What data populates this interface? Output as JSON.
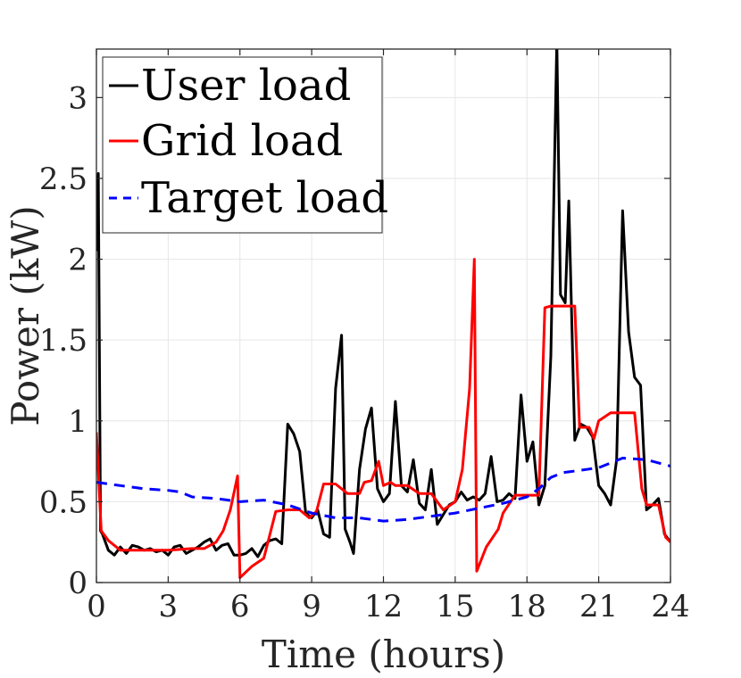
{
  "chart_data": {
    "type": "line",
    "xlabel": "Time (hours)",
    "ylabel": "Power (kW)",
    "xlim": [
      0,
      24
    ],
    "ylim": [
      0,
      3.3
    ],
    "xticks": [
      0,
      3,
      6,
      9,
      12,
      15,
      18,
      21,
      24
    ],
    "yticks": [
      0,
      0.5,
      1,
      1.5,
      2,
      2.5,
      3
    ],
    "ytick_labels": [
      "0",
      "0.5",
      "1",
      "1.5",
      "2",
      "2.5",
      "3"
    ],
    "grid": true,
    "legend_position": "top-left",
    "series": [
      {
        "name": "User load",
        "color": "#000000",
        "style": "solid",
        "x": [
          0,
          0.08,
          0.17,
          0.25,
          0.5,
          0.75,
          1.0,
          1.25,
          1.5,
          1.75,
          2.0,
          2.25,
          2.5,
          2.75,
          3.0,
          3.25,
          3.5,
          3.75,
          4.0,
          4.25,
          4.5,
          4.75,
          5.0,
          5.25,
          5.5,
          5.75,
          6.0,
          6.25,
          6.5,
          6.75,
          7.0,
          7.25,
          7.5,
          7.75,
          8.0,
          8.25,
          8.5,
          8.75,
          9.0,
          9.25,
          9.5,
          9.75,
          10.0,
          10.25,
          10.4,
          10.6,
          10.75,
          11.0,
          11.25,
          11.5,
          11.75,
          12.0,
          12.25,
          12.5,
          12.75,
          13.0,
          13.25,
          13.5,
          13.75,
          14.0,
          14.25,
          14.5,
          14.75,
          15.0,
          15.25,
          15.5,
          15.75,
          16.0,
          16.25,
          16.5,
          16.75,
          17.0,
          17.25,
          17.5,
          17.75,
          18.0,
          18.25,
          18.5,
          18.75,
          19.0,
          19.25,
          19.4,
          19.6,
          19.75,
          20.0,
          20.25,
          20.5,
          20.75,
          21.0,
          21.25,
          21.5,
          21.75,
          22.0,
          22.25,
          22.5,
          22.75,
          23.0,
          23.25,
          23.5,
          23.75,
          24.0
        ],
        "values": [
          2.05,
          2.53,
          0.32,
          0.3,
          0.2,
          0.17,
          0.22,
          0.18,
          0.23,
          0.22,
          0.2,
          0.21,
          0.19,
          0.2,
          0.17,
          0.22,
          0.23,
          0.18,
          0.2,
          0.22,
          0.25,
          0.27,
          0.2,
          0.23,
          0.24,
          0.17,
          0.17,
          0.18,
          0.21,
          0.16,
          0.23,
          0.26,
          0.27,
          0.24,
          0.98,
          0.92,
          0.81,
          0.43,
          0.4,
          0.45,
          0.3,
          0.28,
          1.2,
          1.53,
          0.33,
          0.25,
          0.18,
          0.7,
          0.95,
          1.08,
          0.58,
          0.5,
          0.55,
          1.12,
          0.6,
          0.56,
          0.76,
          0.49,
          0.45,
          0.7,
          0.36,
          0.42,
          0.48,
          0.5,
          0.56,
          0.51,
          0.53,
          0.51,
          0.55,
          0.78,
          0.5,
          0.51,
          0.55,
          0.52,
          1.16,
          0.75,
          0.87,
          0.48,
          0.6,
          1.4,
          3.35,
          1.78,
          1.73,
          2.36,
          0.88,
          0.98,
          0.96,
          0.9,
          0.6,
          0.55,
          0.48,
          0.76,
          2.3,
          1.55,
          1.27,
          1.22,
          0.45,
          0.48,
          0.52,
          0.3,
          0.25
        ]
      },
      {
        "name": "Grid load",
        "color": "#ff0000",
        "style": "solid",
        "x": [
          0,
          0.2,
          0.5,
          1.0,
          2.0,
          3.0,
          4.0,
          4.5,
          5.0,
          5.3,
          5.6,
          5.9,
          6.0,
          6.5,
          7.0,
          7.5,
          8.0,
          8.5,
          8.9,
          9.2,
          9.5,
          10.0,
          10.5,
          11.0,
          11.2,
          11.5,
          11.8,
          12.0,
          12.3,
          12.5,
          13.0,
          13.5,
          14.0,
          14.5,
          15.0,
          15.3,
          15.6,
          15.8,
          15.9,
          16.3,
          16.8,
          17.0,
          17.5,
          18.0,
          18.5,
          18.75,
          19.0,
          20.0,
          20.2,
          20.6,
          20.8,
          21.0,
          21.5,
          22.0,
          22.5,
          22.8,
          23.0,
          23.5,
          23.8,
          24.0
        ],
        "values": [
          0.93,
          0.32,
          0.26,
          0.2,
          0.2,
          0.2,
          0.21,
          0.21,
          0.25,
          0.32,
          0.45,
          0.66,
          0.03,
          0.1,
          0.15,
          0.44,
          0.45,
          0.45,
          0.4,
          0.44,
          0.61,
          0.61,
          0.55,
          0.55,
          0.62,
          0.63,
          0.75,
          0.6,
          0.62,
          0.6,
          0.6,
          0.55,
          0.55,
          0.45,
          0.5,
          0.7,
          1.2,
          2.0,
          0.07,
          0.22,
          0.33,
          0.43,
          0.54,
          0.54,
          0.54,
          1.7,
          1.71,
          1.71,
          0.96,
          0.96,
          0.89,
          1.0,
          1.05,
          1.05,
          1.05,
          0.58,
          0.48,
          0.48,
          0.28,
          0.25
        ]
      },
      {
        "name": "Target load",
        "color": "#0000ff",
        "style": "dashed",
        "x": [
          0,
          1.0,
          2.0,
          3.0,
          3.5,
          4.0,
          5.0,
          6.0,
          7.0,
          8.0,
          9.0,
          10.0,
          11.0,
          12.0,
          13.0,
          14.0,
          15.0,
          16.0,
          17.0,
          18.0,
          18.5,
          19.0,
          19.5,
          20.0,
          21.0,
          21.5,
          22.0,
          23.0,
          24.0
        ],
        "values": [
          0.62,
          0.6,
          0.58,
          0.57,
          0.56,
          0.53,
          0.52,
          0.5,
          0.51,
          0.48,
          0.43,
          0.4,
          0.4,
          0.38,
          0.39,
          0.41,
          0.43,
          0.46,
          0.49,
          0.53,
          0.58,
          0.65,
          0.68,
          0.69,
          0.71,
          0.74,
          0.77,
          0.76,
          0.72
        ]
      }
    ]
  }
}
